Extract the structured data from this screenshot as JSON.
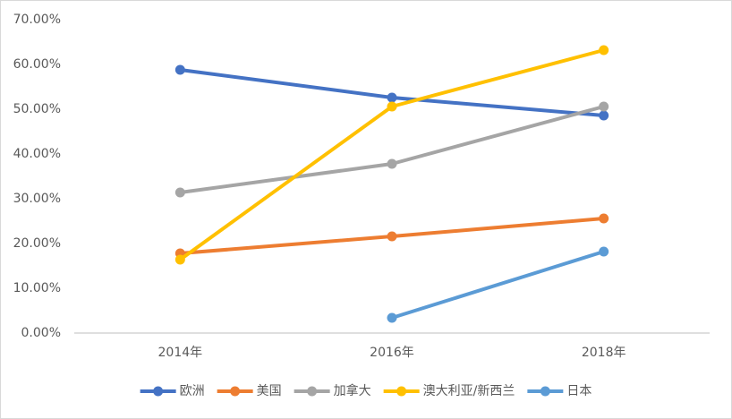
{
  "chart_data": {
    "type": "line",
    "categories": [
      "2014年",
      "2016年",
      "2018年"
    ],
    "series": [
      {
        "name": "欧洲",
        "color": "#4472c4",
        "values": [
          58.8,
          52.6,
          48.6
        ]
      },
      {
        "name": "美国",
        "color": "#ed7d31",
        "values": [
          17.8,
          21.6,
          25.6
        ]
      },
      {
        "name": "加拿大",
        "color": "#a5a5a5",
        "values": [
          31.4,
          37.8,
          50.6
        ]
      },
      {
        "name": "澳大利亚/新西兰",
        "color": "#ffc000",
        "values": [
          16.4,
          50.6,
          63.2
        ]
      },
      {
        "name": "日本",
        "color": "#5b9bd5",
        "values": [
          null,
          3.4,
          18.2
        ]
      }
    ],
    "ylim": [
      0,
      70
    ],
    "yticks": [
      {
        "value": 0,
        "label": "0.00%"
      },
      {
        "value": 10,
        "label": "10.00%"
      },
      {
        "value": 20,
        "label": "20.00%"
      },
      {
        "value": 30,
        "label": "30.00%"
      },
      {
        "value": 40,
        "label": "40.00%"
      },
      {
        "value": 50,
        "label": "50.00%"
      },
      {
        "value": 60,
        "label": "60.00%"
      },
      {
        "value": 70,
        "label": "70.00%"
      }
    ],
    "grid": false,
    "legend": "bottom"
  }
}
